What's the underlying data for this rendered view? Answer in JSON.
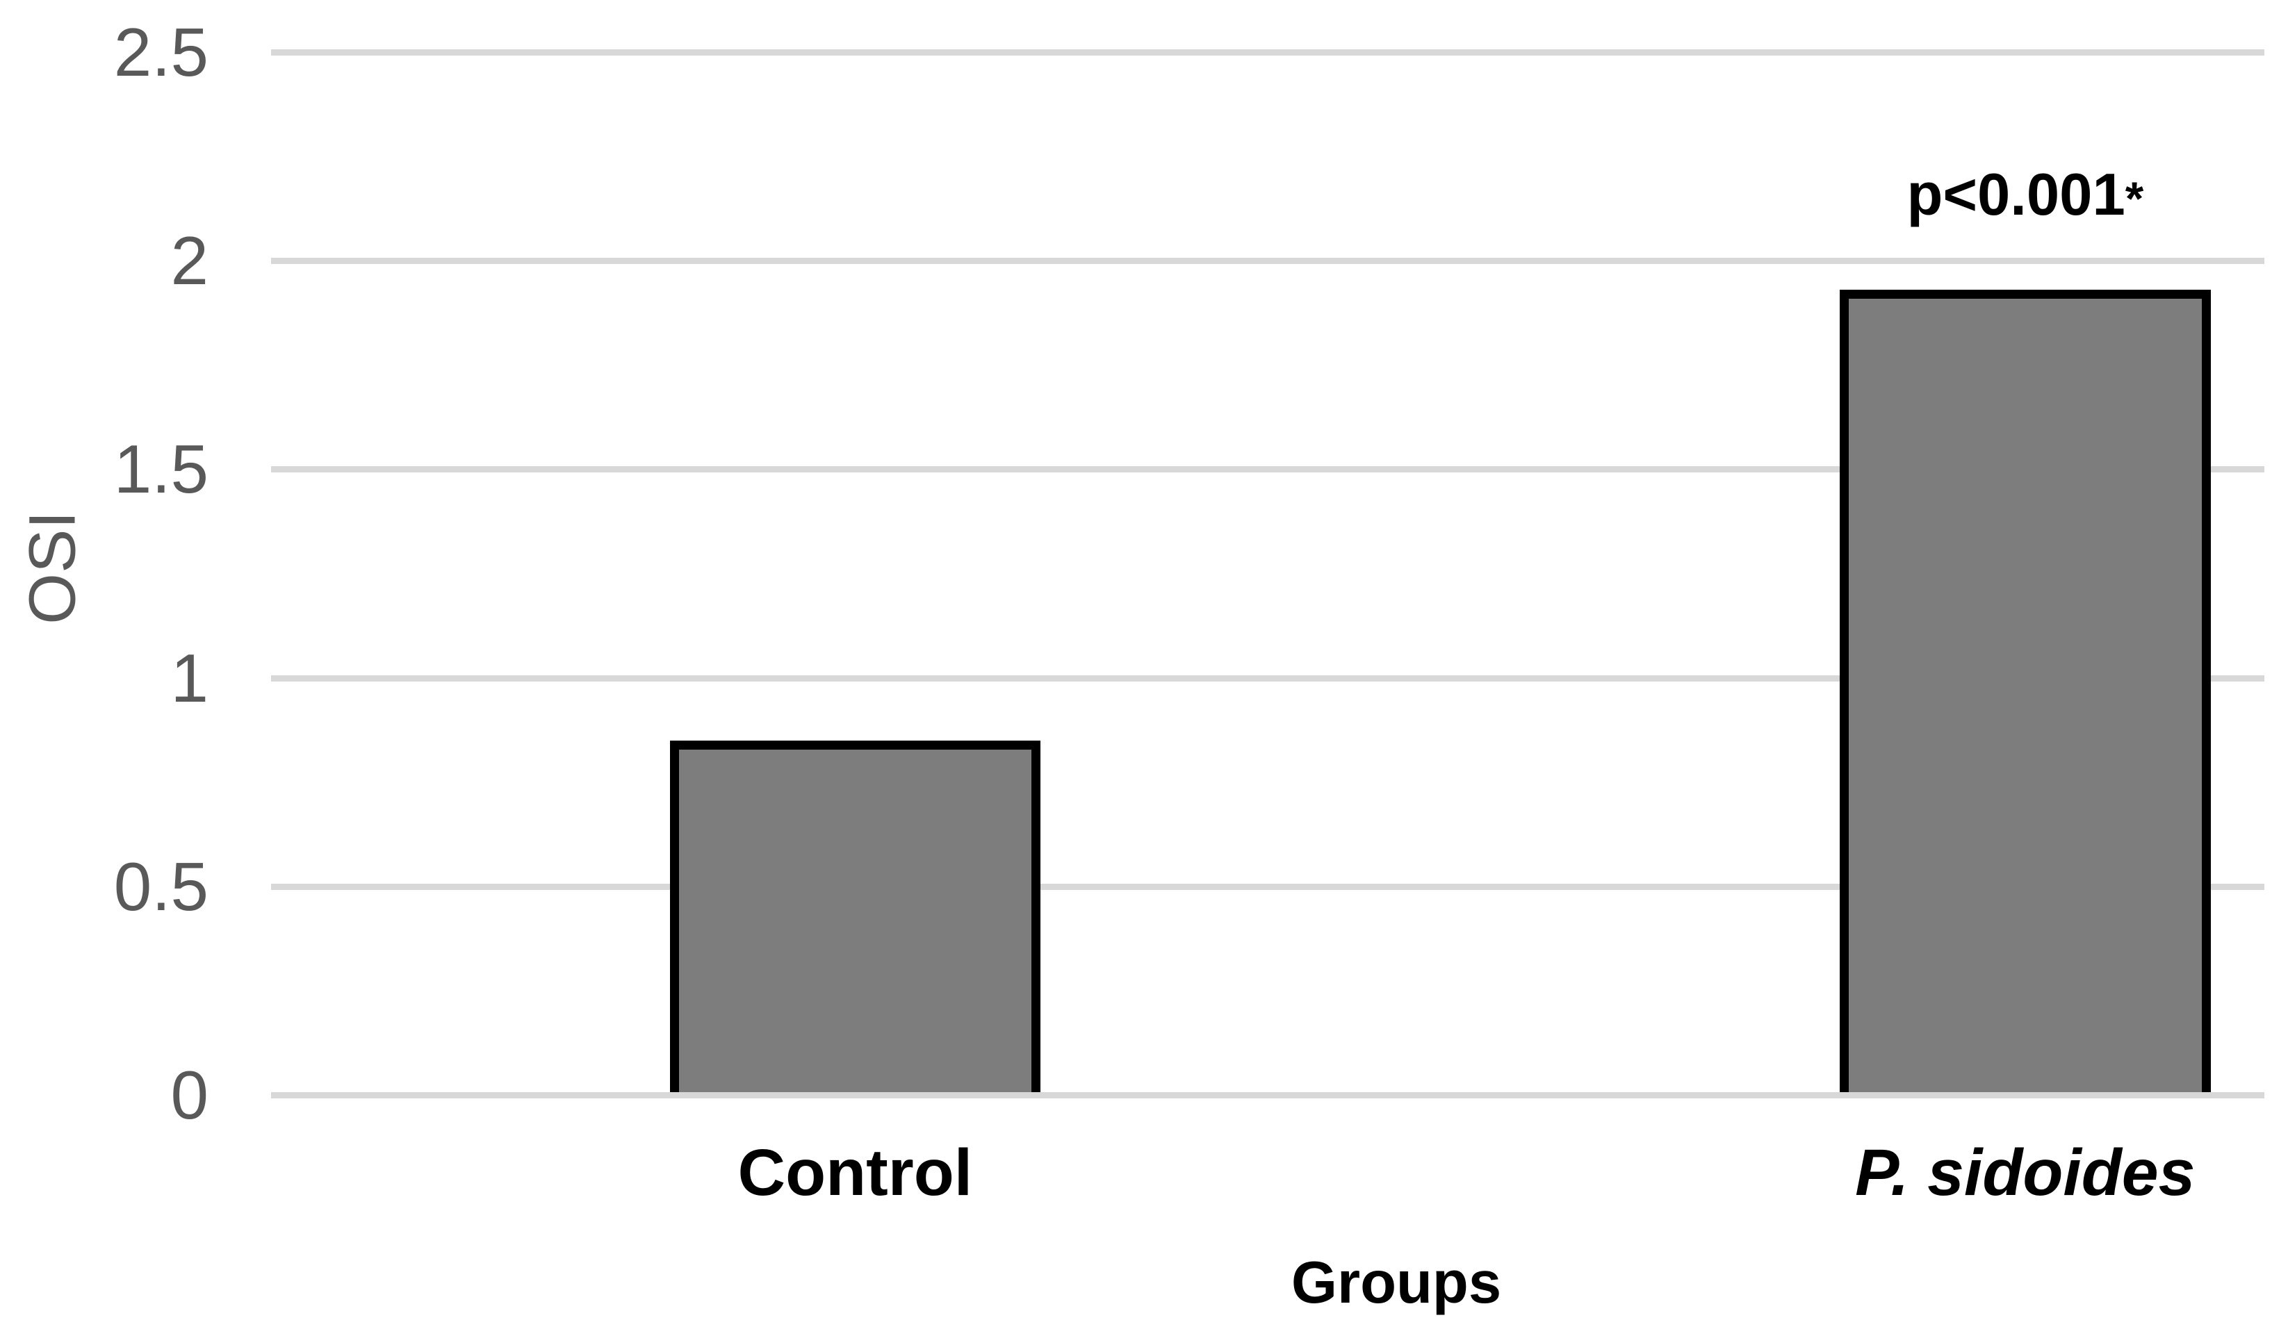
{
  "figure": {
    "background": "#ffffff"
  },
  "chart_data": {
    "type": "bar",
    "title": "",
    "categories": [
      "Control",
      "P. sidoides"
    ],
    "values": [
      0.85,
      1.93
    ],
    "xlabel": "Groups",
    "ylabel": "OSI",
    "ylim": [
      0,
      2.5
    ],
    "yticks": [
      0,
      0.5,
      1,
      1.5,
      2,
      2.5
    ],
    "ytick_labels": [
      "0",
      "0.5",
      "1",
      "1.5",
      "2",
      "2.5"
    ],
    "grid": "horizontal-only",
    "legend": "none",
    "category_styles": [
      "bold",
      "bold-italic"
    ],
    "annotation": {
      "text": "p<0.001",
      "superscript": "*",
      "category_index": 1
    },
    "colors": {
      "bar_fill": "#7d7d7d",
      "bar_border": "#000000",
      "gridline": "#d8d8d8",
      "tick_label": "#595959",
      "ylabel_color": "#595959",
      "xlabel_color": "#000000",
      "category_label": "#000000",
      "annotation": "#000000"
    }
  }
}
